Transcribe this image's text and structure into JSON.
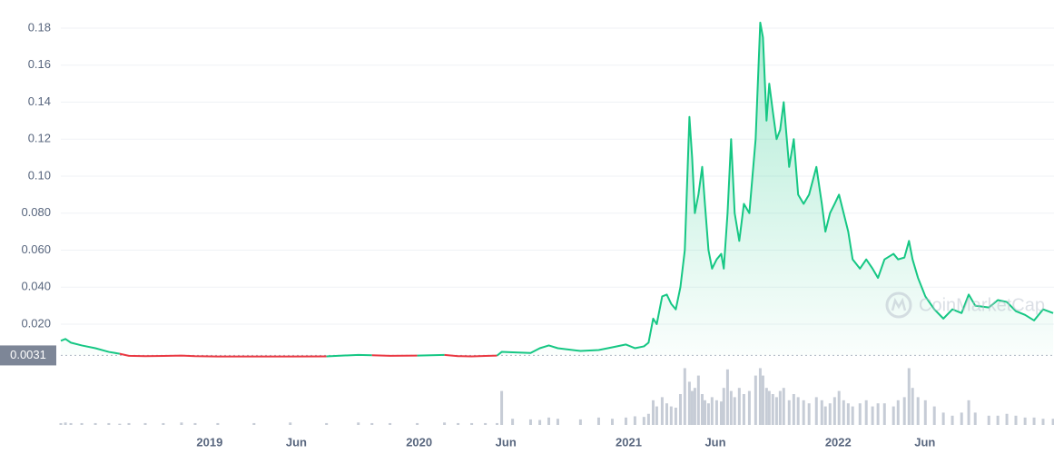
{
  "chart_data": {
    "type": "line",
    "watermark": "CoinMarketCap",
    "baseline": 0.0031,
    "up_color": "#16c784",
    "down_color": "#ea3943",
    "volume_color": "#c6ccd6",
    "grid": true,
    "xlim": [
      2018.29,
      2023.03
    ],
    "xticks": [
      {
        "value": 2019,
        "label": "2019"
      },
      {
        "value": 2019.414,
        "label": "Jun"
      },
      {
        "value": 2020,
        "label": "2020"
      },
      {
        "value": 2020.414,
        "label": "Jun"
      },
      {
        "value": 2021,
        "label": "2021"
      },
      {
        "value": 2021.414,
        "label": "Jun"
      },
      {
        "value": 2022,
        "label": "2022"
      },
      {
        "value": 2022.414,
        "label": "Jun"
      }
    ],
    "ylim": [
      0,
      0.19
    ],
    "yticks": [
      {
        "value": 0.02,
        "label": "0.020"
      },
      {
        "value": 0.04,
        "label": "0.040"
      },
      {
        "value": 0.06,
        "label": "0.060"
      },
      {
        "value": 0.08,
        "label": "0.080"
      },
      {
        "value": 0.1,
        "label": "0.10"
      },
      0.12,
      0.14,
      0.16,
      0.18
    ],
    "x": [
      2018.29,
      2018.312,
      2018.338,
      2018.39,
      2018.455,
      2018.519,
      2018.571,
      2018.615,
      2018.693,
      2018.779,
      2018.866,
      2018.931,
      2019.039,
      2019.212,
      2019.385,
      2019.558,
      2019.71,
      2019.775,
      2019.861,
      2019.991,
      2020.121,
      2020.186,
      2020.251,
      2020.316,
      2020.372,
      2020.394,
      2020.446,
      2020.532,
      2020.576,
      2020.619,
      2020.662,
      2020.77,
      2020.857,
      2020.922,
      2020.987,
      2021.03,
      2021.073,
      2021.095,
      2021.117,
      2021.134,
      2021.16,
      2021.182,
      2021.203,
      2021.225,
      2021.247,
      2021.268,
      2021.29,
      2021.303,
      2021.316,
      2021.333,
      2021.351,
      2021.364,
      2021.381,
      2021.398,
      2021.42,
      2021.442,
      2021.454,
      2021.472,
      2021.489,
      2021.506,
      2021.528,
      2021.55,
      2021.576,
      2021.606,
      2021.628,
      2021.641,
      2021.658,
      2021.671,
      2021.688,
      2021.706,
      2021.723,
      2021.74,
      2021.766,
      2021.788,
      2021.809,
      2021.835,
      2021.861,
      2021.896,
      2021.922,
      2021.939,
      2021.961,
      2021.983,
      2022.004,
      2022.026,
      2022.048,
      2022.069,
      2022.104,
      2022.134,
      2022.164,
      2022.19,
      2022.221,
      2022.264,
      2022.286,
      2022.316,
      2022.338,
      2022.355,
      2022.381,
      2022.416,
      2022.459,
      2022.502,
      2022.545,
      2022.589,
      2022.623,
      2022.654,
      2022.719,
      2022.762,
      2022.805,
      2022.848,
      2022.892,
      2022.935,
      2022.978,
      2023.026
    ],
    "values": [
      0.011,
      0.012,
      0.01,
      0.0085,
      0.007,
      0.005,
      0.004,
      0.0029,
      0.0027,
      0.0028,
      0.003,
      0.0027,
      0.0025,
      0.0025,
      0.0025,
      0.0026,
      0.0034,
      0.0032,
      0.0029,
      0.003,
      0.0034,
      0.0027,
      0.0026,
      0.0028,
      0.003,
      0.005,
      0.0048,
      0.0044,
      0.007,
      0.0085,
      0.007,
      0.0055,
      0.006,
      0.0075,
      0.009,
      0.007,
      0.008,
      0.01,
      0.023,
      0.02,
      0.035,
      0.036,
      0.031,
      0.028,
      0.04,
      0.06,
      0.132,
      0.11,
      0.08,
      0.09,
      0.105,
      0.085,
      0.06,
      0.05,
      0.055,
      0.058,
      0.05,
      0.08,
      0.12,
      0.08,
      0.065,
      0.085,
      0.08,
      0.12,
      0.183,
      0.175,
      0.13,
      0.15,
      0.135,
      0.12,
      0.125,
      0.14,
      0.105,
      0.12,
      0.09,
      0.085,
      0.09,
      0.105,
      0.085,
      0.07,
      0.08,
      0.085,
      0.09,
      0.08,
      0.07,
      0.055,
      0.05,
      0.055,
      0.05,
      0.045,
      0.055,
      0.058,
      0.055,
      0.056,
      0.065,
      0.055,
      0.045,
      0.035,
      0.028,
      0.023,
      0.028,
      0.026,
      0.036,
      0.03,
      0.029,
      0.033,
      0.032,
      0.027,
      0.025,
      0.022,
      0.028,
      0.026
    ],
    "volume_lim": [
      0,
      100
    ],
    "volume": [
      3,
      4,
      3,
      3,
      3,
      3,
      2,
      3,
      3,
      3,
      4,
      3,
      3,
      3,
      4,
      3,
      4,
      3,
      3,
      3,
      4,
      3,
      3,
      3,
      3,
      55,
      10,
      9,
      8,
      12,
      10,
      9,
      12,
      10,
      12,
      14,
      13,
      18,
      40,
      30,
      45,
      35,
      30,
      28,
      50,
      92,
      70,
      55,
      60,
      80,
      50,
      40,
      35,
      45,
      40,
      38,
      60,
      90,
      55,
      45,
      60,
      50,
      55,
      80,
      92,
      80,
      60,
      55,
      50,
      45,
      55,
      60,
      40,
      50,
      45,
      40,
      35,
      45,
      40,
      30,
      35,
      45,
      55,
      40,
      35,
      30,
      35,
      40,
      30,
      35,
      35,
      30,
      40,
      45,
      92,
      60,
      45,
      40,
      30,
      20,
      15,
      20,
      40,
      20,
      15,
      15,
      18,
      15,
      12,
      12,
      10,
      10
    ]
  }
}
